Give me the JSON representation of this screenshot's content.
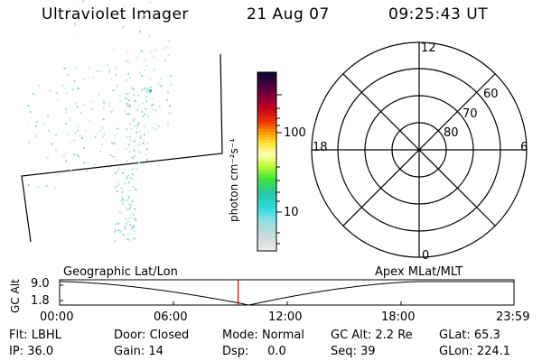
{
  "header": {
    "instrument": "Ultraviolet Imager",
    "date": "21 Aug 07",
    "time": "09:25:43 UT"
  },
  "colorbar": {
    "unit_label": "photon cm⁻²s⁻¹",
    "ticks": [
      {
        "label": "100",
        "value": 100
      },
      {
        "label": "10",
        "value": 10
      }
    ],
    "scale": "log"
  },
  "polar_plot": {
    "mlt_labels": {
      "top": "12",
      "bottom": "0",
      "left": "18",
      "right": "6"
    },
    "lat_labels": [
      "60",
      "70",
      "80"
    ]
  },
  "altitude_plot": {
    "ylabel": "GC Alt",
    "yticks": [
      "9.0",
      "1.8"
    ],
    "left_title": "Geographic Lat/Lon",
    "right_title": "Apex  MLat/MLT",
    "xticks": [
      "00:00",
      "06:00",
      "12:00",
      "18:00",
      "23:59"
    ],
    "current_time_hours": 9.43
  },
  "info": {
    "row1": [
      {
        "key": "Flt:",
        "value": "LBHL"
      },
      {
        "key": "Door:",
        "value": "Closed"
      },
      {
        "key": "Mode:",
        "value": "Normal"
      },
      {
        "key": "GC Alt:",
        "value": "2.2 Re"
      },
      {
        "key": "GLat:",
        "value": "65.3"
      }
    ],
    "row2": [
      {
        "key": "IP:",
        "value": "36.0"
      },
      {
        "key": "Gain:",
        "value": "14"
      },
      {
        "key": "Dsp:",
        "value": "0.0"
      },
      {
        "key": "Seq:",
        "value": "39"
      },
      {
        "key": "GLon:",
        "value": "224.1"
      }
    ]
  }
}
